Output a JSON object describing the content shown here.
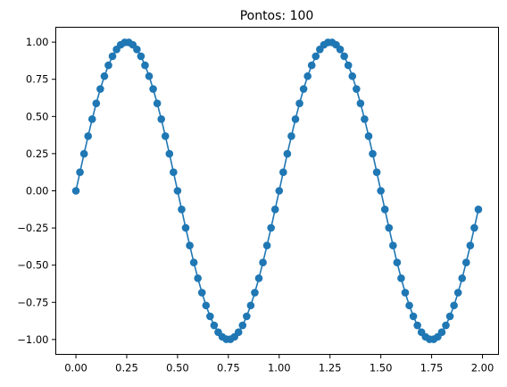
{
  "chart_data": {
    "type": "line",
    "title": "Pontos: 100",
    "xlabel": "",
    "ylabel": "",
    "xlim": [
      -0.099,
      2.079
    ],
    "ylim": [
      -1.1,
      1.1
    ],
    "x_ticks": [
      0.0,
      0.25,
      0.5,
      0.75,
      1.0,
      1.25,
      1.5,
      1.75,
      2.0
    ],
    "x_tick_labels": [
      "0.00",
      "0.25",
      "0.50",
      "0.75",
      "1.00",
      "1.25",
      "1.50",
      "1.75",
      "2.00"
    ],
    "y_ticks": [
      -1.0,
      -0.75,
      -0.5,
      -0.25,
      0.0,
      0.25,
      0.5,
      0.75,
      1.0
    ],
    "y_tick_labels": [
      "−1.00",
      "−0.75",
      "−0.50",
      "−0.25",
      "0.00",
      "0.25",
      "0.50",
      "0.75",
      "1.00"
    ],
    "grid": false,
    "series": [
      {
        "color": "#1f77b4",
        "marker": "circle",
        "x": [
          0.0,
          0.02,
          0.04,
          0.06,
          0.08,
          0.1,
          0.12,
          0.14,
          0.16,
          0.18,
          0.2,
          0.22,
          0.24,
          0.26,
          0.28,
          0.3,
          0.32,
          0.34,
          0.36,
          0.38,
          0.4,
          0.42,
          0.44,
          0.46,
          0.48,
          0.5,
          0.52,
          0.54,
          0.56,
          0.58,
          0.6,
          0.62,
          0.64,
          0.66,
          0.68,
          0.7,
          0.72,
          0.74,
          0.76,
          0.78,
          0.8,
          0.82,
          0.84,
          0.86,
          0.88,
          0.9,
          0.92,
          0.94,
          0.96,
          0.98,
          1.0,
          1.02,
          1.04,
          1.06,
          1.08,
          1.1,
          1.12,
          1.14,
          1.16,
          1.18,
          1.2,
          1.22,
          1.24,
          1.26,
          1.28,
          1.3,
          1.32,
          1.34,
          1.36,
          1.38,
          1.4,
          1.42,
          1.44,
          1.46,
          1.48,
          1.5,
          1.52,
          1.54,
          1.56,
          1.58,
          1.6,
          1.62,
          1.64,
          1.66,
          1.68,
          1.7,
          1.72,
          1.74,
          1.76,
          1.78,
          1.8,
          1.82,
          1.84,
          1.86,
          1.88,
          1.9,
          1.92,
          1.94,
          1.96,
          1.98
        ],
        "y": [
          0.0,
          0.125,
          0.249,
          0.368,
          0.482,
          0.588,
          0.685,
          0.771,
          0.844,
          0.905,
          0.951,
          0.982,
          0.998,
          0.998,
          0.982,
          0.951,
          0.905,
          0.844,
          0.771,
          0.685,
          0.588,
          0.482,
          0.368,
          0.249,
          0.125,
          0.0,
          -0.125,
          -0.249,
          -0.368,
          -0.482,
          -0.588,
          -0.685,
          -0.771,
          -0.844,
          -0.905,
          -0.951,
          -0.982,
          -0.998,
          -0.998,
          -0.982,
          -0.951,
          -0.905,
          -0.844,
          -0.771,
          -0.685,
          -0.588,
          -0.482,
          -0.368,
          -0.249,
          -0.125,
          0.0,
          0.125,
          0.249,
          0.368,
          0.482,
          0.588,
          0.685,
          0.771,
          0.844,
          0.905,
          0.951,
          0.982,
          0.998,
          0.998,
          0.982,
          0.951,
          0.905,
          0.844,
          0.771,
          0.685,
          0.588,
          0.482,
          0.368,
          0.249,
          0.125,
          0.0,
          -0.125,
          -0.249,
          -0.368,
          -0.482,
          -0.588,
          -0.685,
          -0.771,
          -0.844,
          -0.905,
          -0.951,
          -0.982,
          -0.998,
          -0.998,
          -0.982,
          -0.951,
          -0.905,
          -0.844,
          -0.771,
          -0.685,
          -0.588,
          -0.482,
          -0.368,
          -0.249,
          -0.125
        ]
      }
    ]
  }
}
